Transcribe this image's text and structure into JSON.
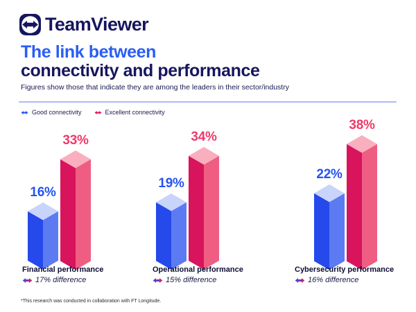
{
  "brand": {
    "name": "TeamViewer",
    "navy": "#16165e"
  },
  "header": {
    "title_line1": "The link between",
    "title_line2": "connectivity and performance",
    "subtitle": "Figures show those that indicate they are among the leaders in their sector/industry"
  },
  "legend": {
    "items": [
      {
        "label": "Good connectivity",
        "color": "#2553f2"
      },
      {
        "label": "Excellent connectivity",
        "color": "#e8175d"
      }
    ]
  },
  "chart_data": {
    "type": "bar",
    "variant": "3d-isometric-columns",
    "title": "The link between connectivity and performance",
    "categories": [
      "Financial performance",
      "Operational performance",
      "Cybersecurity performance"
    ],
    "series": [
      {
        "name": "Good connectivity",
        "values": [
          16,
          19,
          22
        ],
        "color": "#2549ea",
        "color_light": "#5c7bf2",
        "color_top": "#c8d4fa",
        "label_color": "#2553f2"
      },
      {
        "name": "Excellent connectivity",
        "values": [
          33,
          34,
          38
        ],
        "color": "#d8145c",
        "color_light": "#ef5e82",
        "color_top": "#f9afbe",
        "label_color": "#ee3a6b"
      }
    ],
    "value_suffix": "%",
    "differences": [
      "17% difference",
      "15% difference",
      "16% difference"
    ],
    "legend_position": "top-left",
    "grid": false,
    "axes": false,
    "ylim": [
      0,
      40
    ]
  },
  "footnote": "*This research was conducted in collaboration with FT Longitude."
}
